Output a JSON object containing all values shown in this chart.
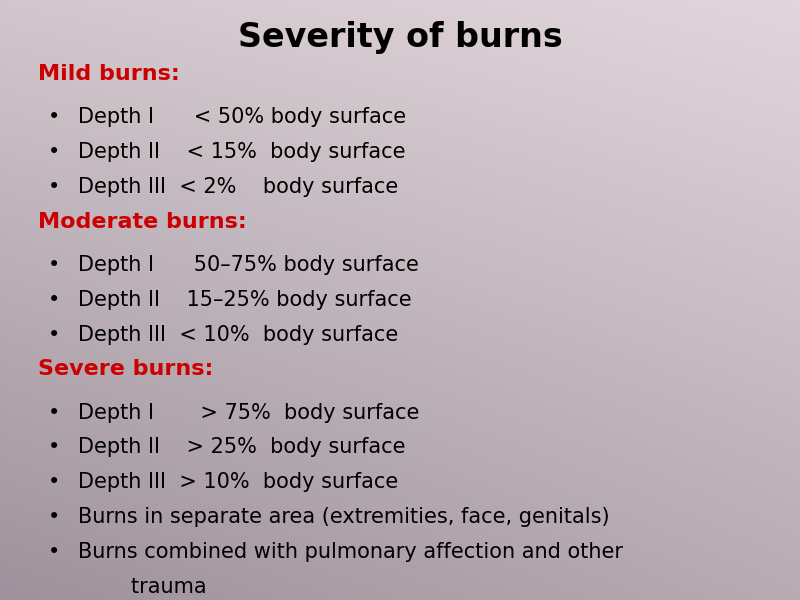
{
  "title": "Severity of burns",
  "title_fontsize": 24,
  "title_fontweight": "bold",
  "text_color_body": "#000000",
  "sections": [
    {
      "heading": "Mild burns:",
      "heading_color": "#cc0000",
      "items": [
        "Depth I      < 50% body surface",
        "Depth II    < 15%  body surface",
        "Depth III  < 2%    body surface"
      ]
    },
    {
      "heading": "Moderate burns:",
      "heading_color": "#cc0000",
      "items": [
        "Depth I      50–75% body surface",
        "Depth II    15–25% body surface",
        "Depth III  < 10%  body surface"
      ]
    },
    {
      "heading": "Severe burns:",
      "heading_color": "#cc0000",
      "items": [
        "Depth I       > 75%  body surface",
        "Depth II    > 25%  body surface",
        "Depth III  > 10%  body surface",
        "Burns in separate area (extremities, face, genitals)",
        "Burns combined with pulmonary affection and other"
      ],
      "last_item_continuation": "        trauma"
    }
  ],
  "bullet": "•",
  "heading_fontsize": 16,
  "item_fontsize": 15,
  "figsize": [
    8.0,
    6.0
  ],
  "dpi": 100,
  "bg_topleft": [
    0.82,
    0.78,
    0.8
  ],
  "bg_topright": [
    0.88,
    0.84,
    0.86
  ],
  "bg_bottomleft": [
    0.62,
    0.57,
    0.61
  ],
  "bg_bottomright": [
    0.72,
    0.67,
    0.7
  ]
}
